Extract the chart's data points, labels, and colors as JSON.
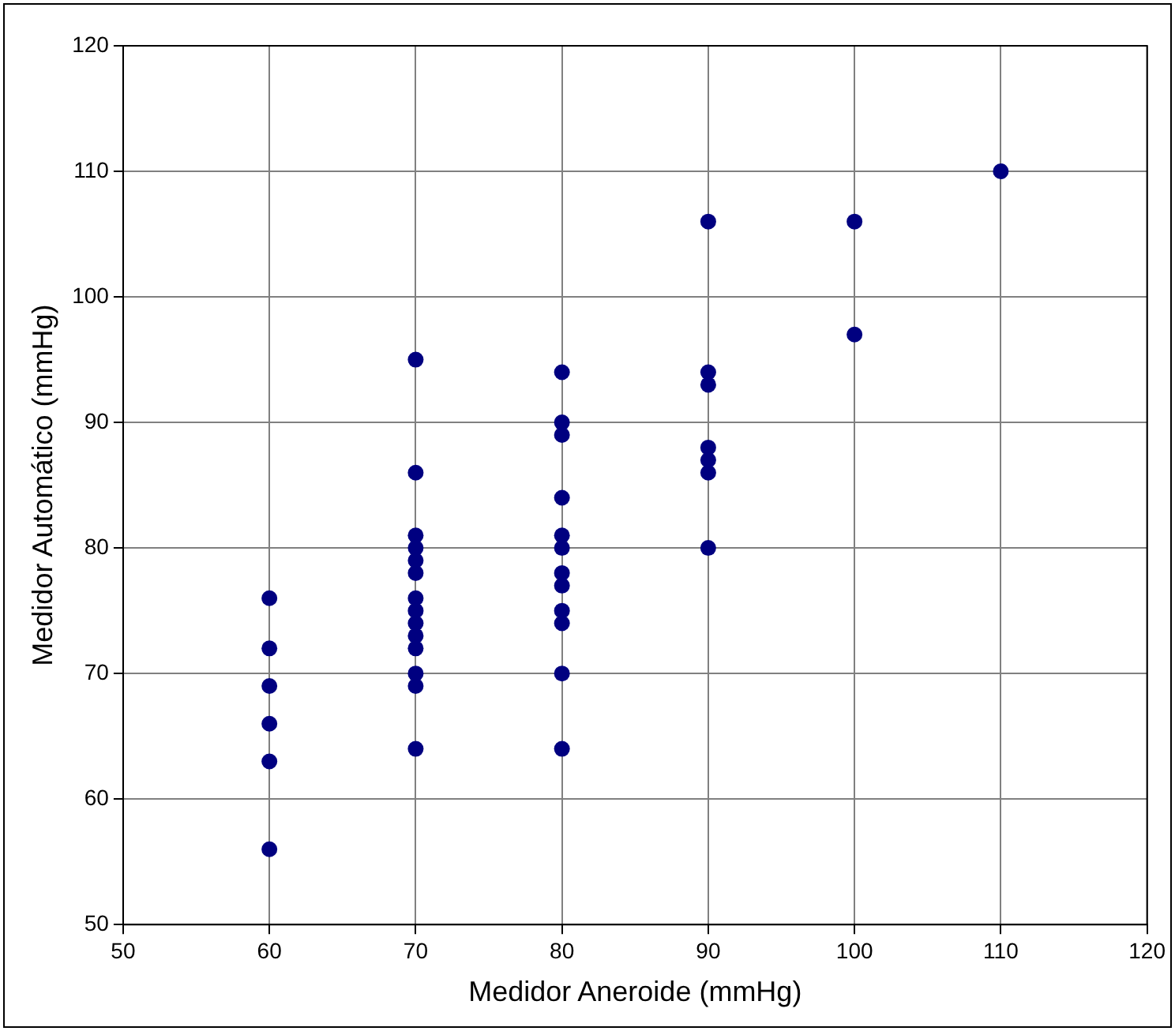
{
  "chart_data": {
    "type": "scatter",
    "xlabel": "Medidor Aneroide (mmHg)",
    "ylabel": "Medidor Automático (mmHg)",
    "x": [
      60,
      60,
      60,
      60,
      60,
      60,
      70,
      70,
      70,
      70,
      70,
      70,
      70,
      70,
      70,
      70,
      70,
      70,
      70,
      70,
      80,
      80,
      80,
      80,
      80,
      80,
      80,
      80,
      80,
      80,
      80,
      80,
      90,
      90,
      90,
      90,
      90,
      90,
      90,
      100,
      100,
      110
    ],
    "series": [
      {
        "color": "#000080",
        "values": [
          76,
          72,
          69,
          66,
          63,
          56,
          95,
          86,
          81,
          80,
          79,
          78,
          76,
          75,
          74,
          73,
          72,
          70,
          69,
          64,
          94,
          90,
          89,
          84,
          81,
          80,
          78,
          77,
          75,
          74,
          70,
          64,
          106,
          94,
          93,
          88,
          87,
          86,
          80,
          106,
          97,
          110
        ]
      }
    ],
    "xlim": [
      50,
      120
    ],
    "xticks": [
      50,
      60,
      70,
      80,
      90,
      100,
      110,
      120
    ],
    "ylim": [
      50,
      120
    ],
    "yticks": [
      50,
      60,
      70,
      80,
      90,
      100,
      110,
      120
    ],
    "grid": true,
    "legend": false,
    "marker": "circle"
  }
}
